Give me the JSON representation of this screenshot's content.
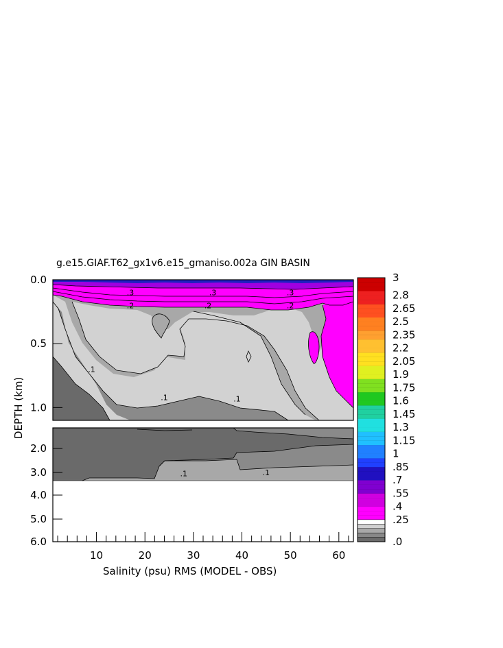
{
  "chart_data": {
    "type": "heatmap",
    "title": "g.e15.GIAF.T62_gx1v6.e15_gmaniso.002a GIN BASIN",
    "xlabel": "Salinity (psu) RMS (MODEL - OBS)",
    "ylabel": "DEPTH (km)",
    "x_ticks": [
      "10",
      "20",
      "30",
      "40",
      "50",
      "60"
    ],
    "x_tick_values": [
      10,
      20,
      30,
      40,
      50,
      60
    ],
    "xlim": [
      1,
      63
    ],
    "upper_panel": {
      "ylim": [
        0,
        1.1
      ],
      "y_ticks": [
        "0.0",
        "0.5",
        "1.0"
      ],
      "y_tick_values": [
        0,
        0.5,
        1.0
      ]
    },
    "lower_panel": {
      "ylim": [
        1.1,
        6.0
      ],
      "y_ticks": [
        "2.0",
        "3.0",
        "4.0",
        "5.0",
        "6.0"
      ],
      "y_tick_values": [
        2,
        3,
        4,
        5,
        6
      ]
    },
    "contour_labels": [
      {
        "text": ".3",
        "x": 17,
        "depth": 0.1
      },
      {
        "text": ".3",
        "x": 34,
        "depth": 0.1
      },
      {
        "text": ".3",
        "x": 50,
        "depth": 0.1
      },
      {
        "text": ".2",
        "x": 17,
        "depth": 0.2
      },
      {
        "text": ".2",
        "x": 33,
        "depth": 0.2
      },
      {
        "text": ".2",
        "x": 50,
        "depth": 0.2
      },
      {
        "text": ".1",
        "x": 9,
        "depth": 0.7
      },
      {
        "text": ".1",
        "x": 24,
        "depth": 0.92
      },
      {
        "text": ".1",
        "x": 39,
        "depth": 0.93
      },
      {
        "text": ".1",
        "x": 28,
        "depth": 3.0
      },
      {
        "text": ".1",
        "x": 45,
        "depth": 2.95
      }
    ],
    "colorbar": {
      "labels": [
        "3",
        "2.8",
        "2.65",
        "2.5",
        "2.35",
        "2.2",
        "2.05",
        "1.9",
        "1.75",
        "1.6",
        "1.45",
        "1.3",
        "1.15",
        "1",
        ".85",
        ".7",
        ".55",
        ".4",
        ".25",
        ".0"
      ],
      "label_values": [
        3,
        2.8,
        2.65,
        2.5,
        2.35,
        2.2,
        2.05,
        1.9,
        1.75,
        1.6,
        1.45,
        1.3,
        1.15,
        1,
        0.85,
        0.7,
        0.55,
        0.4,
        0.25,
        0
      ],
      "range": [
        0,
        3
      ],
      "colors_high_to_low": [
        "#cc0000",
        "#ee2020",
        "#ff5020",
        "#ff8020",
        "#ffa030",
        "#ffc030",
        "#ffe020",
        "#e0f020",
        "#80e020",
        "#20c820",
        "#20d0a0",
        "#20e0e0",
        "#20c0ff",
        "#2080ff",
        "#2040ff",
        "#2010c0",
        "#8000d0",
        "#d000e0",
        "#ff00ff"
      ],
      "gray_low": [
        "#ffffff",
        "#d0d0d0",
        "#a8a8a8",
        "#888888",
        "#6a6a6a"
      ]
    }
  }
}
